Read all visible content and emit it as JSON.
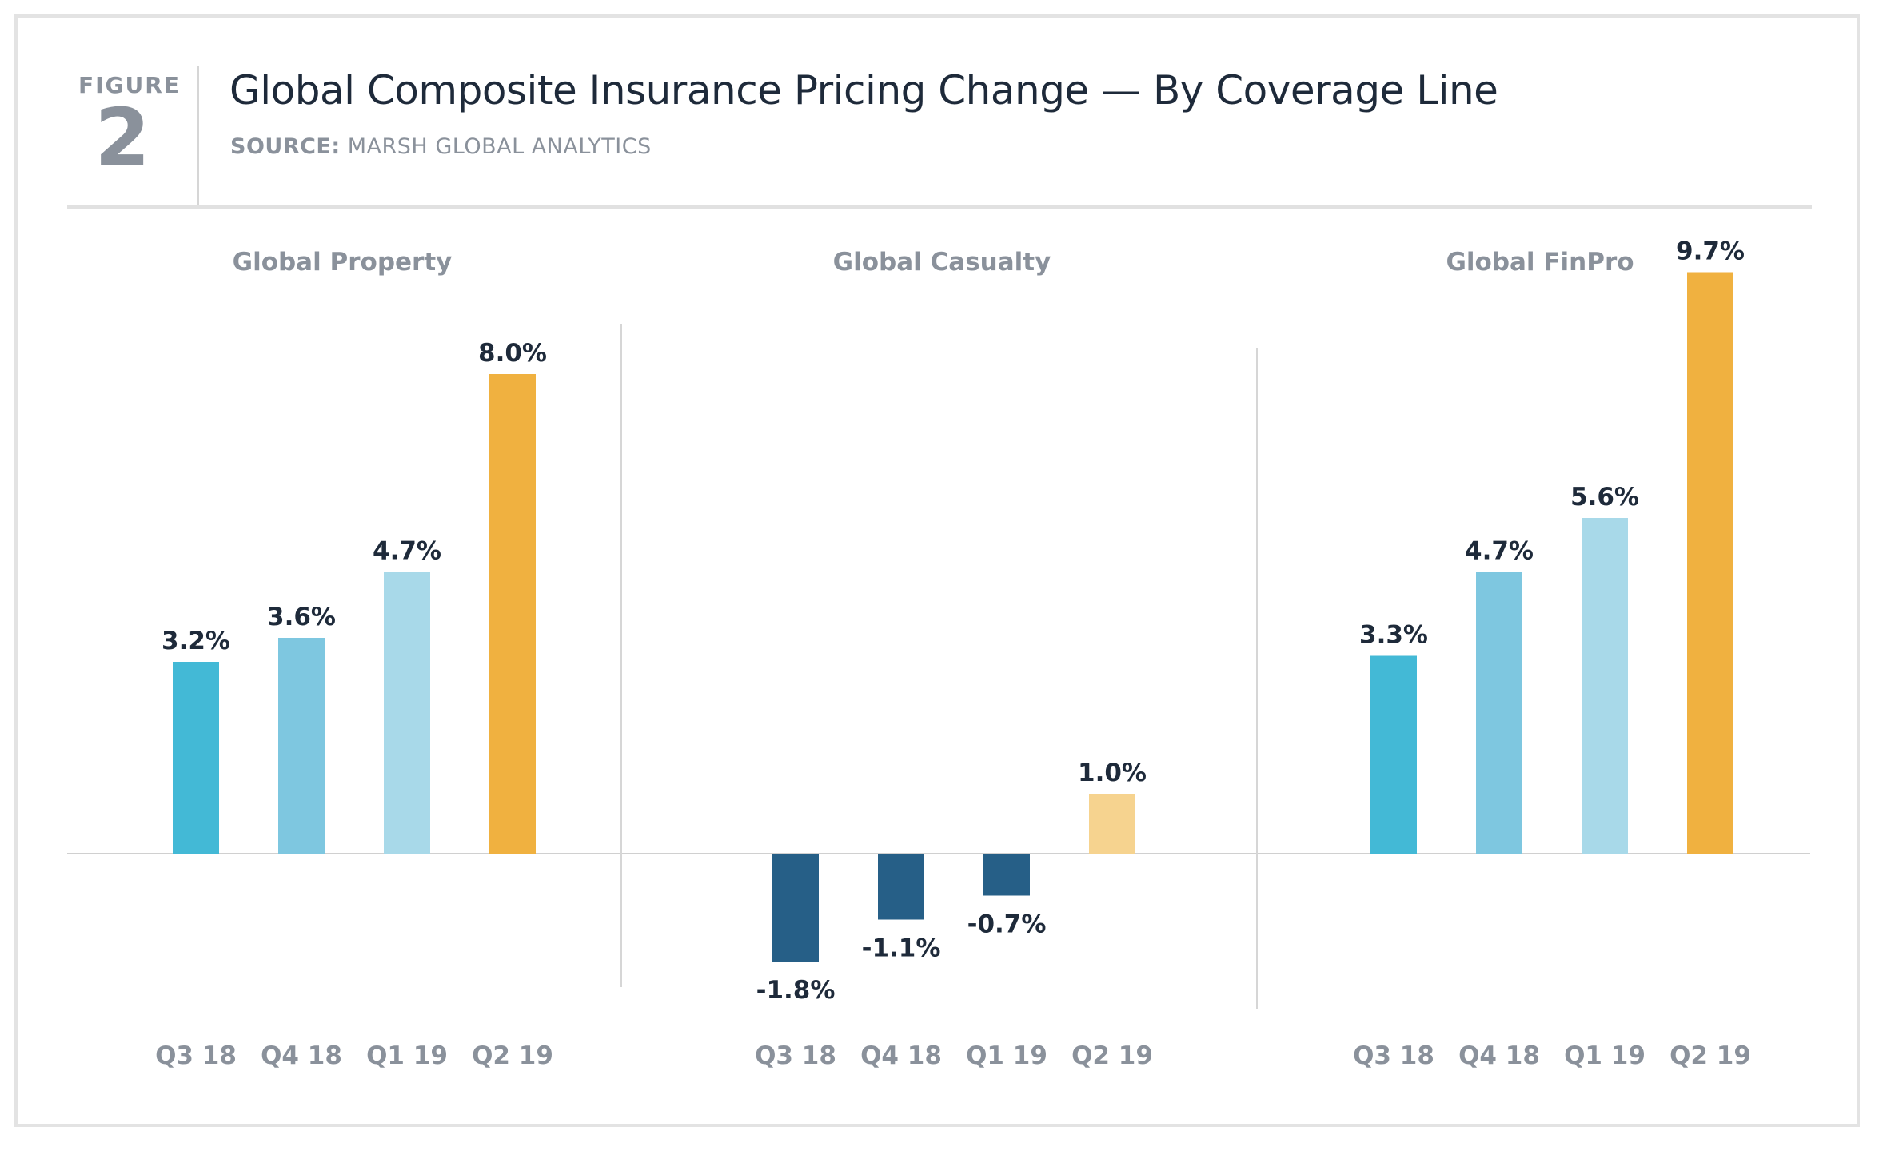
{
  "figure": {
    "label": "FIGURE",
    "number": "2"
  },
  "header": {
    "title": "Global Composite Insurance Pricing Change — By Coverage Line",
    "source_label": "SOURCE:",
    "source_value": "MARSH GLOBAL ANALYTICS"
  },
  "colors": {
    "q3": "#43b9d6",
    "q4": "#7ec7e0",
    "q1": "#a8d9e9",
    "q2": "#f0b140",
    "negative": "#265f87",
    "q2_casualty": "#f6d38f",
    "label_text": "#1e2a3a",
    "muted_text": "#8a919b"
  },
  "chart_data": [
    {
      "type": "bar",
      "title": "Global Property",
      "categories": [
        "Q3 18",
        "Q4 18",
        "Q1 19",
        "Q2 19"
      ],
      "values": [
        3.2,
        3.6,
        4.7,
        8.0
      ],
      "value_labels": [
        "3.2%",
        "3.6%",
        "4.7%",
        "8.0%"
      ],
      "ylabel": "",
      "xlabel": ""
    },
    {
      "type": "bar",
      "title": "Global Casualty",
      "categories": [
        "Q3 18",
        "Q4 18",
        "Q1 19",
        "Q2 19"
      ],
      "values": [
        -1.8,
        -1.1,
        -0.7,
        1.0
      ],
      "value_labels": [
        "-1.8%",
        "-1.1%",
        "-0.7%",
        "1.0%"
      ],
      "ylabel": "",
      "xlabel": ""
    },
    {
      "type": "bar",
      "title": "Global FinPro",
      "categories": [
        "Q3 18",
        "Q4 18",
        "Q1 19",
        "Q2 19"
      ],
      "values": [
        3.3,
        4.7,
        5.6,
        9.7
      ],
      "value_labels": [
        "3.3%",
        "4.7%",
        "5.6%",
        "9.7%"
      ],
      "ylabel": "",
      "xlabel": ""
    }
  ]
}
